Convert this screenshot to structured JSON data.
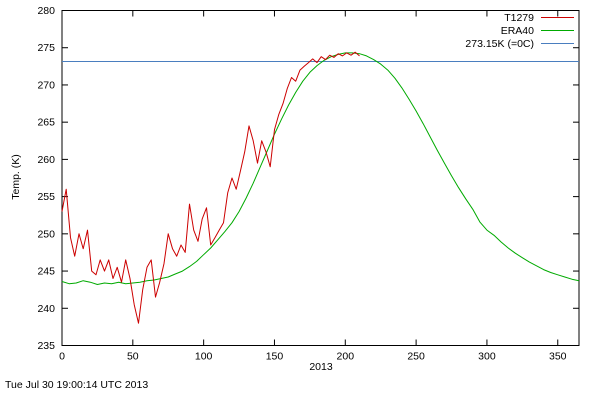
{
  "chart_data": {
    "type": "line",
    "title": "",
    "xlabel": "2013",
    "ylabel": "Temp. (K)",
    "timestamp": "Tue Jul 30 19:00:14 UTC 2013",
    "xlim": [
      0,
      365
    ],
    "ylim": [
      235,
      280
    ],
    "xticks": [
      0,
      50,
      100,
      150,
      200,
      250,
      300,
      350
    ],
    "yticks": [
      235,
      240,
      245,
      250,
      255,
      260,
      265,
      270,
      275,
      280
    ],
    "grid": false,
    "legend_position": "top-right-inside",
    "axis_color": "#000000",
    "background_color": "#ffffff",
    "series": [
      {
        "name": "T1279",
        "color": "#cc0000",
        "x": [
          0,
          3,
          6,
          9,
          12,
          15,
          18,
          21,
          24,
          27,
          30,
          33,
          36,
          39,
          42,
          45,
          48,
          51,
          54,
          57,
          60,
          63,
          66,
          69,
          72,
          75,
          78,
          81,
          84,
          87,
          90,
          93,
          96,
          99,
          102,
          105,
          108,
          111,
          114,
          117,
          120,
          123,
          126,
          129,
          132,
          135,
          138,
          141,
          144,
          147,
          150,
          153,
          156,
          159,
          162,
          165,
          168,
          171,
          174,
          177,
          180,
          183,
          186,
          189,
          192,
          195,
          198,
          201,
          204,
          207,
          210
        ],
        "y": [
          253,
          256,
          249.5,
          247,
          250,
          248,
          250.5,
          245,
          244.5,
          246.5,
          245,
          246.5,
          244,
          245.5,
          243.5,
          246.5,
          244,
          240.5,
          238,
          242.5,
          245.5,
          246.5,
          241.5,
          243.5,
          246,
          250,
          248,
          247,
          248.5,
          247.5,
          254,
          250.5,
          249,
          252,
          253.5,
          248.5,
          249.5,
          250.5,
          251.5,
          255.5,
          257.5,
          256,
          258.5,
          261,
          264.5,
          262.5,
          259.5,
          262.5,
          261,
          259,
          264,
          266,
          267.5,
          269.5,
          271,
          270.5,
          272,
          272.5,
          273,
          273.5,
          273,
          273.8,
          273.4,
          274,
          273.7,
          274.2,
          273.9,
          274.3,
          274,
          274.4,
          273.9
        ]
      },
      {
        "name": "ERA40",
        "color": "#00aa00",
        "x": [
          0,
          5,
          10,
          15,
          20,
          25,
          30,
          35,
          40,
          45,
          50,
          55,
          60,
          65,
          70,
          75,
          80,
          85,
          90,
          95,
          100,
          105,
          110,
          115,
          120,
          125,
          130,
          135,
          140,
          145,
          150,
          155,
          160,
          165,
          170,
          175,
          180,
          185,
          190,
          195,
          200,
          205,
          210,
          215,
          220,
          225,
          230,
          235,
          240,
          245,
          250,
          255,
          260,
          265,
          270,
          275,
          280,
          285,
          290,
          295,
          300,
          305,
          310,
          315,
          320,
          325,
          330,
          335,
          340,
          345,
          350,
          355,
          360,
          365
        ],
        "y": [
          243.6,
          243.3,
          243.4,
          243.7,
          243.5,
          243.2,
          243.4,
          243.3,
          243.5,
          243.3,
          243.4,
          243.5,
          243.7,
          243.8,
          244.0,
          244.2,
          244.6,
          245.0,
          245.6,
          246.3,
          247.2,
          248.1,
          249.2,
          250.3,
          251.5,
          253.0,
          254.8,
          256.8,
          259.0,
          261.2,
          263.4,
          265.4,
          267.3,
          269.0,
          270.5,
          271.7,
          272.6,
          273.3,
          273.8,
          274.1,
          274.3,
          274.3,
          274.2,
          273.9,
          273.4,
          272.8,
          272.0,
          270.9,
          269.6,
          268.1,
          266.5,
          264.8,
          263.0,
          261.2,
          259.5,
          257.8,
          256.2,
          254.7,
          253.3,
          251.6,
          250.5,
          249.8,
          248.9,
          248.1,
          247.4,
          246.8,
          246.2,
          245.7,
          245.2,
          244.8,
          244.5,
          244.2,
          243.9,
          243.7
        ]
      },
      {
        "name": "273.15K (=0C)",
        "color": "#4a7ebf",
        "x": [
          0,
          365
        ],
        "y": [
          273.15,
          273.15
        ]
      }
    ]
  }
}
